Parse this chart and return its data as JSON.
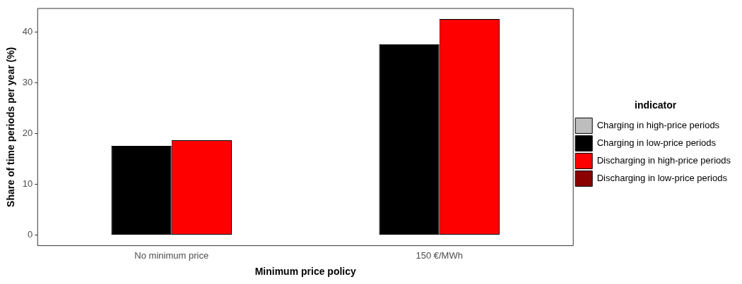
{
  "chart_data": {
    "type": "bar",
    "xlabel": "Minimum price policy",
    "ylabel": "Share of time periods per year (%)",
    "legend_title": "indicator",
    "categories": [
      "No minimum price",
      "150 €/MWh"
    ],
    "series": [
      {
        "name": "Charging in high-price periods",
        "color": "#bebebe",
        "values": [
          0,
          0
        ]
      },
      {
        "name": "Charging in low-price periods",
        "color": "#000000",
        "values": [
          17.6,
          37.6
        ]
      },
      {
        "name": "Discharging in high-price periods",
        "color": "#ff0000",
        "values": [
          18.7,
          42.6
        ]
      },
      {
        "name": "Discharging in low-price periods",
        "color": "#8b0000",
        "values": [
          0,
          0
        ]
      }
    ],
    "ylim": [
      -2.1,
      44.7
    ],
    "yticks": [
      0,
      10,
      20,
      30,
      40
    ],
    "grid": false,
    "legend": "right"
  }
}
